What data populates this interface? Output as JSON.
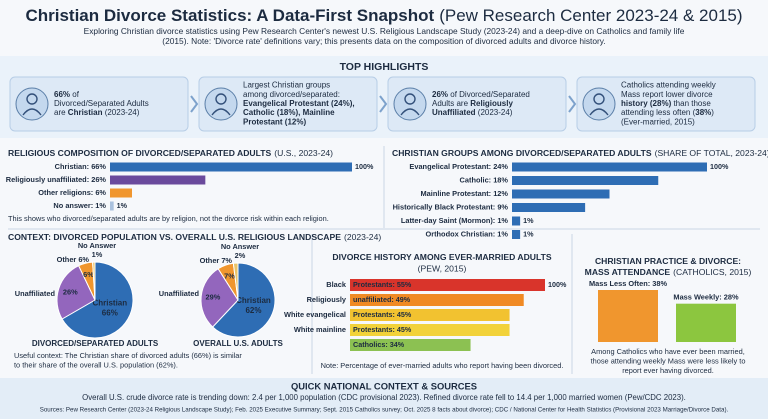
{
  "header": {
    "title": "Christian Divorce Statistics: A Data-First Snapshot",
    "title_note": "(Pew Research Center 2023-24 & 2015)",
    "subtitle": [
      "Exploring Christian divorce statistics using Pew Research Center's newest U.S. Religious Landscape Study (2023-24) and a deep-dive on Catholics and family life",
      "(2015). Note: 'Divorce rate' definitions vary; this presents data on the composition of divorced adults and divorce history."
    ]
  },
  "highlights": {
    "title": "TOP HIGHLIGHTS",
    "items": [
      {
        "lines": [
          [
            {
              "text": "66%",
              "bold": true
            },
            {
              "text": " of"
            }
          ],
          [
            {
              "text": "Divorced/Separated Adults"
            }
          ],
          [
            {
              "text": "are "
            },
            {
              "text": "Christian",
              "bold": true
            },
            {
              "text": " (2023-24)"
            }
          ]
        ]
      },
      {
        "lines": [
          [
            {
              "text": "Largest Christian groups"
            }
          ],
          [
            {
              "text": "among divorced/separated:"
            }
          ],
          [
            {
              "text": "Evangelical Protestant (24%),",
              "bold": true
            }
          ],
          [
            {
              "text": "Catholic (18%), Mainline",
              "bold": true
            }
          ],
          [
            {
              "text": "Protestant (12%)",
              "bold": true
            }
          ]
        ]
      },
      {
        "lines": [
          [
            {
              "text": "26%",
              "bold": true
            },
            {
              "text": " of Divorced/Separated"
            }
          ],
          [
            {
              "text": "Adults are "
            },
            {
              "text": "Religiously",
              "bold": true
            }
          ],
          [
            {
              "text": "Unaffiliated",
              "bold": true
            },
            {
              "text": " (2023-24)"
            }
          ]
        ]
      },
      {
        "lines": [
          [
            {
              "text": "Catholics attending weekly"
            }
          ],
          [
            {
              "text": "Mass report lower divorce"
            }
          ],
          [
            {
              "text": "history (28%)",
              "bold": true
            },
            {
              "text": " than those"
            }
          ],
          [
            {
              "text": "attending less often ("
            },
            {
              "text": "38%",
              "bold": true
            },
            {
              "text": ")"
            }
          ],
          [
            {
              "text": "(Ever-married, 2015)"
            }
          ]
        ]
      }
    ]
  },
  "chart_data": [
    {
      "type": "hbar",
      "title": "RELIGIOUS COMPOSITION OF DIVORCED/SEPARATED ADULTS",
      "title_note": "(U.S., 2023-24)",
      "categories": [
        "Christian: 66%",
        "Religiously unaffiliated: 26%",
        "Other religions: 6%",
        "No answer: 1%"
      ],
      "values": [
        66,
        26,
        6,
        1
      ],
      "colors": [
        "#2e6db4",
        "#6a4a9c",
        "#f0962e",
        "#a9c1de"
      ],
      "end_labels": [
        "100%",
        null,
        null,
        "1%"
      ],
      "note": [
        "This shows who divorced/separated adults are by religion, not the divorce risk within each religion."
      ]
    },
    {
      "type": "hbar",
      "title": "CHRISTIAN GROUPS AMONG DIVORCED/SEPARATED ADULTS",
      "title_note": "(SHARE OF TOTAL, 2023-24)",
      "categories": [
        "Evangelical Protestant: 24%",
        "Catholic: 18%",
        "Mainline Protestant: 12%",
        "Historically Black Protestant: 9%",
        "Latter-day Saint (Mormon): 1%",
        "Orthodox Christian: 1%"
      ],
      "values": [
        24,
        18,
        12,
        9,
        1,
        1
      ],
      "colors": [
        "#2e6db4",
        "#2e6db4",
        "#2e6db4",
        "#2e6db4",
        "#2e6db4",
        "#2e6db4"
      ],
      "end_labels": [
        "100%",
        null,
        null,
        null,
        "1%",
        "1%"
      ]
    },
    {
      "type": "pie",
      "title": "CONTEXT: DIVORCED POPULATION VS. OVERALL U.S. RELIGIOUS LANDSCAPE",
      "title_note": "(2023-24)",
      "colors": [
        "#2e6db4",
        "#9366bd",
        "#f0962e",
        "#e9c46a"
      ],
      "pies": [
        {
          "caption": "DIVORCED/SEPARATED ADULTS",
          "categories": [
            "Christian",
            "Unaffiliated",
            "Other",
            "No Answer"
          ],
          "values": [
            66,
            26,
            6,
            1
          ],
          "value_labels": [
            "66%",
            "26%",
            "6%",
            "1%"
          ]
        },
        {
          "caption": "OVERALL U.S. ADULTS",
          "categories": [
            "Christian",
            "Unaffiliated",
            "Other",
            "No Answer"
          ],
          "values": [
            62,
            29,
            7,
            2
          ],
          "value_labels": [
            "62%",
            "29%",
            "7%",
            "2%"
          ]
        }
      ],
      "note": [
        "Useful context: The Christian share of divorced adults (66%) is similar",
        "to their share of the overall U.S. population (62%)."
      ]
    },
    {
      "type": "hbar",
      "title": "DIVORCE HISTORY AMONG EVER-MARRIED ADULTS",
      "title_note": "(PEW, 2015)",
      "categories": [
        "Black",
        "Religiously",
        "White evangelical",
        "White mainline",
        null
      ],
      "values": [
        55,
        49,
        45,
        45,
        34
      ],
      "value_labels": [
        "Protestants: 55%",
        "unaffiliated: 49%",
        "Protestants: 45%",
        "Protestants: 45%",
        "Catholics: 34%"
      ],
      "colors": [
        "#d9342b",
        "#f08a24",
        "#f2c230",
        "#f2d23a",
        "#8cc152"
      ],
      "end_labels": [
        "100%",
        null,
        null,
        null,
        null
      ],
      "note": [
        "Note: Percentage of ever-married adults who report having been divorced."
      ]
    },
    {
      "type": "column",
      "title": [
        "CHRISTIAN PRACTICE & DIVORCE:",
        "MASS ATTENDANCE"
      ],
      "title_note": "(CATHOLICS, 2015)",
      "categories": [
        "Mass Less Often: 38%",
        "Mass Weekly: 28%"
      ],
      "values": [
        38,
        28
      ],
      "colors": [
        "#f0962e",
        "#8cc63f"
      ],
      "note": [
        "Among Catholics who have ever been married,",
        "those attending weekly Mass were less likely to",
        "report ever having divorced."
      ]
    }
  ],
  "footer": {
    "title": "QUICK NATIONAL CONTEXT & SOURCES",
    "text": "Overall U.S. crude divorce rate is trending down: 2.4 per 1,000 population (CDC provisional 2023). Refined divorce rate fell to 14.4 per 1,000 married women (Pew/CDC 2023).",
    "sources": "Sources: Pew Research Center (2023-24 Religious Landscape Study); Feb. 2025 Executive Summary; Sept. 2015 Catholics survey; Oct. 2025 8 facts about divorce); CDC / National Center for Health Statistics (Provisional 2023 Marriage/Divorce Data)."
  }
}
